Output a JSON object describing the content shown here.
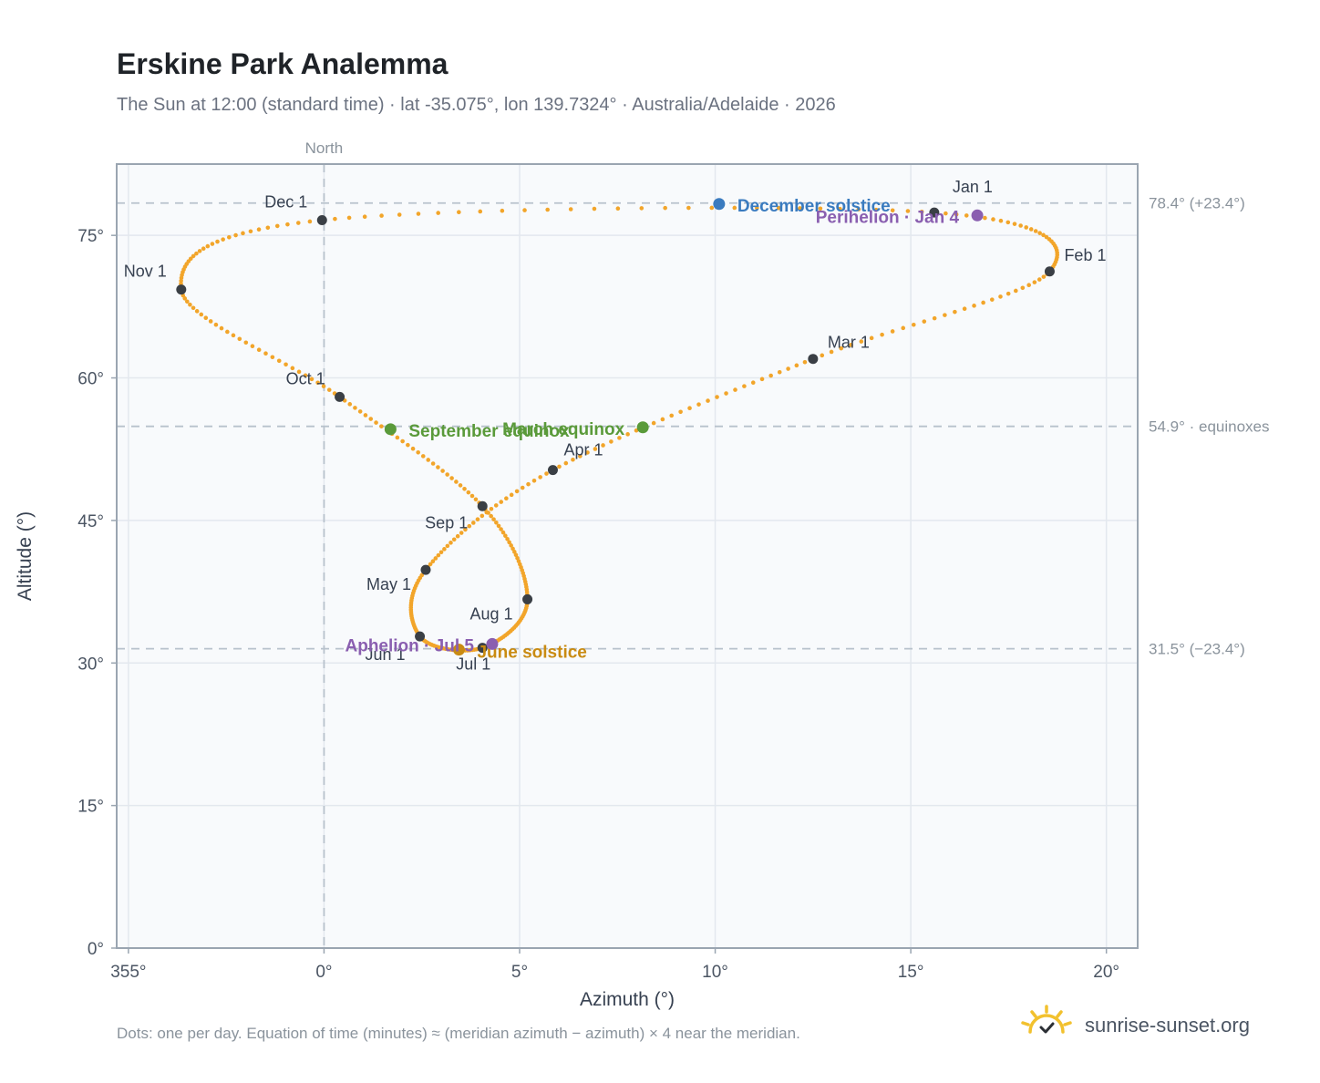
{
  "header": {
    "title": "Erskine Park Analemma",
    "subtitle": "The Sun at 12:00 (standard time) · lat -35.075°, lon 139.7324° · Australia/Adelaide · 2026"
  },
  "footer": {
    "note": "Dots: one per day. Equation of time (minutes) ≈ (meridian azimuth − azimuth) × 4 near the meridian.",
    "brand": "sunrise-sunset.org"
  },
  "colors": {
    "curve": "#f2a52a",
    "month_marker": "#3a3f45",
    "december_solstice": "#3a7bbf",
    "equinox": "#5a9a3a",
    "june_solstice": "#c98b12",
    "apsis": "#8a5fb0",
    "plot_bg": "#f8fafc",
    "grid": "#e3e8ee",
    "reference_line": "#b8c2cc"
  },
  "chart_data": {
    "type": "scatter",
    "title": "Erskine Park Analemma",
    "xlabel": "Azimuth (°)",
    "ylabel": "Altitude (°)",
    "xlim": [
      354.7,
      20.8
    ],
    "ylim": [
      0,
      82.5
    ],
    "x_ticks": [
      "355°",
      "0°",
      "5°",
      "10°",
      "15°",
      "20°"
    ],
    "x_tick_values": [
      355,
      0,
      5,
      10,
      15,
      20
    ],
    "y_ticks": [
      "0°",
      "15°",
      "30°",
      "45°",
      "60°",
      "75°"
    ],
    "y_tick_values": [
      0,
      15,
      30,
      45,
      60,
      75
    ],
    "grid": true,
    "meridian": {
      "azimuth": 0,
      "label": "North"
    },
    "reference_lines": [
      {
        "altitude": 78.4,
        "label": "78.4° (+23.4°)"
      },
      {
        "altitude": 54.9,
        "label": "54.9° · equinoxes"
      },
      {
        "altitude": 31.5,
        "label": "31.5° (−23.4°)"
      }
    ],
    "month_markers": [
      {
        "label": "Jan 1",
        "az": 15.6,
        "alt": 77.4
      },
      {
        "label": "Feb 1",
        "az": 18.55,
        "alt": 71.2
      },
      {
        "label": "Mar 1",
        "az": 12.5,
        "alt": 62.0
      },
      {
        "label": "Apr 1",
        "az": 5.85,
        "alt": 50.3
      },
      {
        "label": "May 1",
        "az": 2.6,
        "alt": 39.8
      },
      {
        "label": "Jun 1",
        "az": 2.45,
        "alt": 32.8
      },
      {
        "label": "Jul 1",
        "az": 4.05,
        "alt": 31.6
      },
      {
        "label": "Aug 1",
        "az": 5.2,
        "alt": 36.7
      },
      {
        "label": "Sep 1",
        "az": 4.05,
        "alt": 46.5
      },
      {
        "label": "Oct 1",
        "az": 0.4,
        "alt": 58.0
      },
      {
        "label": "Nov 1",
        "az": 356.35,
        "alt": 69.3
      },
      {
        "label": "Dec 1",
        "az": 359.95,
        "alt": 76.6
      }
    ],
    "events": [
      {
        "label": "December solstice",
        "az": 10.1,
        "alt": 78.3,
        "color_key": "december_solstice"
      },
      {
        "label": "Perihelion · Jan 4",
        "az": 16.7,
        "alt": 77.1,
        "color_key": "apsis"
      },
      {
        "label": "March equinox",
        "az": 8.15,
        "alt": 54.8,
        "color_key": "equinox"
      },
      {
        "label": "September equinox",
        "az": 1.7,
        "alt": 54.6,
        "color_key": "equinox"
      },
      {
        "label": "June solstice",
        "az": 3.45,
        "alt": 31.4,
        "color_key": "june_solstice"
      },
      {
        "label": "Aphelion · Jul 5",
        "az": 4.3,
        "alt": 32.0,
        "color_key": "apsis"
      }
    ]
  }
}
